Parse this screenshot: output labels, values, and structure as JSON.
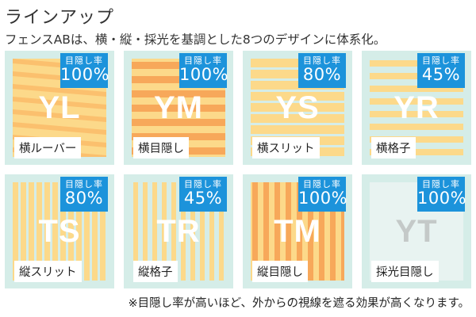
{
  "header": {
    "title": "ラインアップ",
    "subtitle": "フェンスABは、横・縦・採光を基調とした8つのデザインに体系化。"
  },
  "footnote": "※目隠し率が高いほど、外からの視線を遮る効果が高くなります。",
  "colors": {
    "card_bg": "#d5ede8",
    "badge_bg": "#1c93db",
    "stripe_light": "#fcd98a",
    "stripe_dark": "#f7a85a",
    "stripe_mid": "#fbc06e",
    "frosted": "#e8f3f1"
  },
  "products": [
    {
      "code": "YL",
      "name": "横ルーバー",
      "badge_label": "目隠し率",
      "rate": "100%",
      "pattern": "louver"
    },
    {
      "code": "YM",
      "name": "横目隠し",
      "badge_label": "目隠し率",
      "rate": "100%",
      "pattern": "h-solid"
    },
    {
      "code": "YS",
      "name": "横スリット",
      "badge_label": "目隠し率",
      "rate": "80%",
      "pattern": "h-slit"
    },
    {
      "code": "YR",
      "name": "横格子",
      "badge_label": "目隠し率",
      "rate": "45%",
      "pattern": "h-lattice"
    },
    {
      "code": "TS",
      "name": "縦スリット",
      "badge_label": "目隠し率",
      "rate": "80%",
      "pattern": "v-slit"
    },
    {
      "code": "TR",
      "name": "縦格子",
      "badge_label": "目隠し率",
      "rate": "45%",
      "pattern": "v-lattice"
    },
    {
      "code": "TM",
      "name": "縦目隠し",
      "badge_label": "目隠し率",
      "rate": "100%",
      "pattern": "v-solid"
    },
    {
      "code": "YT",
      "name": "採光目隠し",
      "badge_label": "目隠し率",
      "rate": "100%",
      "pattern": "frosted"
    }
  ]
}
